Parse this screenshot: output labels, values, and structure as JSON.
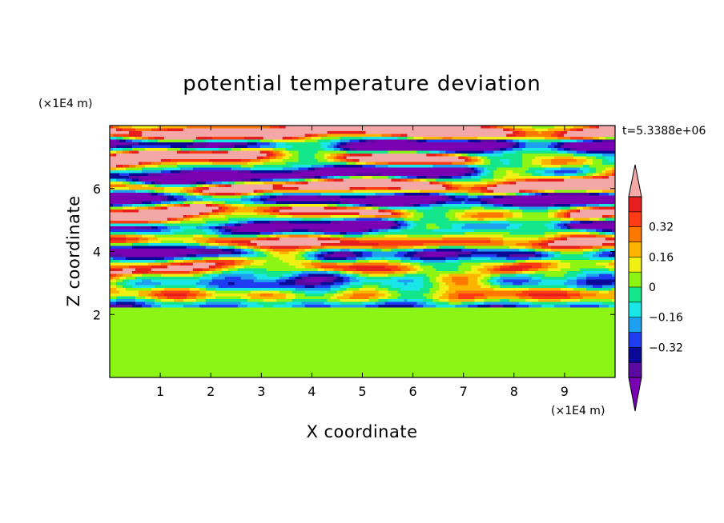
{
  "chart_data": {
    "type": "heatmap",
    "title": "potential temperature deviation",
    "xlabel": "X coordinate",
    "ylabel": "Z coordinate",
    "x_unit": "(×1E4 m)",
    "y_unit": "(×1E4 m)",
    "time_label": "t=5.3388e+06",
    "xlim": [
      0,
      10
    ],
    "ylim": [
      0,
      8
    ],
    "x_ticks": [
      "1",
      "2",
      "3",
      "4",
      "5",
      "6",
      "7",
      "8",
      "9"
    ],
    "y_ticks": [
      "2",
      "4",
      "6"
    ],
    "colorbar": {
      "min": -0.48,
      "max": 0.48,
      "step": 0.08,
      "extend": "both",
      "tick_labels": [
        "0.32",
        "0.16",
        "0",
        "−0.16",
        "−0.32"
      ],
      "tick_values": [
        0.32,
        0.16,
        0,
        -0.16,
        -0.32
      ],
      "under_color": "#7a00b4",
      "over_color": "#f4a7a7",
      "colors": [
        "#5a0aa0",
        "#0a0a96",
        "#1e3cf0",
        "#1ea0f0",
        "#19e6e6",
        "#14e68c",
        "#8cf514",
        "#f0f014",
        "#ffb400",
        "#ff7800",
        "#ff3c14",
        "#e61e1e"
      ]
    },
    "field_regions": [
      {
        "z_range": [
          0,
          2.1
        ],
        "pattern": "mixed green / light-green cells",
        "values": [
          0.0,
          0.04
        ]
      },
      {
        "z_range": [
          2.1,
          3.2
        ],
        "pattern": "turbulent mixing layer",
        "values": [
          -0.32,
          0.32
        ]
      },
      {
        "z_range": [
          3.2,
          4.6
        ],
        "pattern": "alternating layers with wave crests",
        "values": [
          -0.48,
          0.48
        ]
      },
      {
        "z_range": [
          4.6,
          8.0
        ],
        "pattern": "alternating pink / purple layers",
        "values": [
          -0.48,
          0.48
        ]
      }
    ]
  }
}
